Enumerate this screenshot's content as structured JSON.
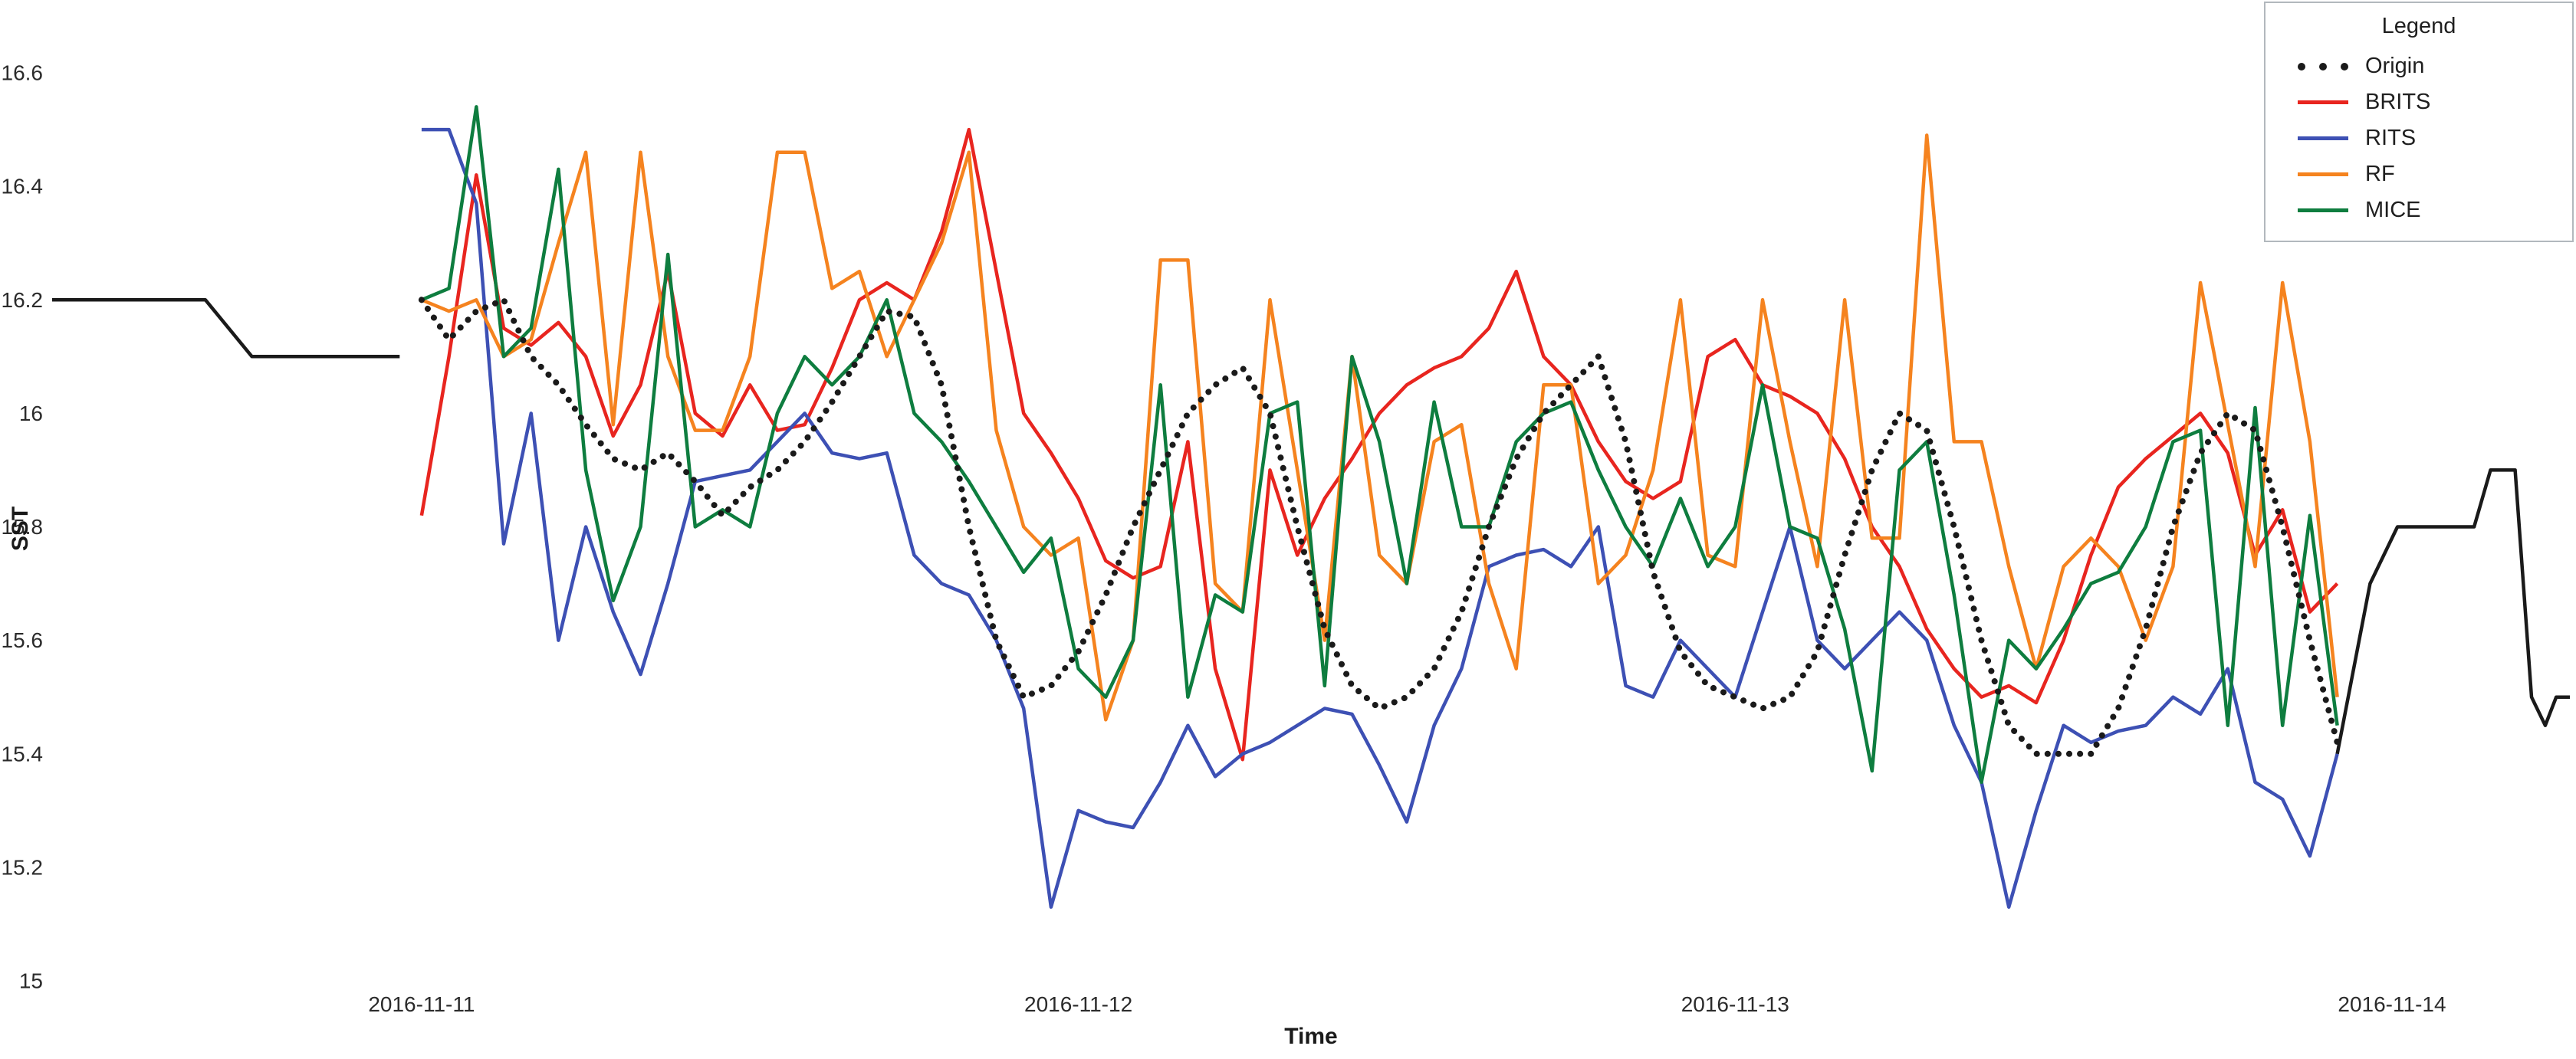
{
  "chart_data": {
    "type": "line",
    "title": "",
    "xlabel": "Time",
    "ylabel": "SST",
    "ylim": [
      15,
      16.6
    ],
    "yticks": [
      16.6,
      16.4,
      16.2,
      16,
      15.8,
      15.6,
      15.4,
      15.2,
      15
    ],
    "ytick_labels": [
      "16.6",
      "16.4",
      "16.2",
      "16",
      "15.8",
      "15.6",
      "15.4",
      "15.2",
      "15"
    ],
    "xlim": [
      -13.5,
      78.5
    ],
    "x_unit": "hours relative to 2016-11-11 00:00",
    "xticks": [
      {
        "x": 0,
        "label": "2016-11-11"
      },
      {
        "x": 24,
        "label": "2016-11-12"
      },
      {
        "x": 48,
        "label": "2016-11-13"
      },
      {
        "x": 72,
        "label": "2016-11-14"
      }
    ],
    "grid": false,
    "legend": {
      "title": "Legend",
      "position": "top-right"
    },
    "series": [
      {
        "name": "Origin",
        "color": "#1a1a1a",
        "style": "dotted",
        "segments": [
          {
            "style": "solid",
            "x": [
              -13.5,
              -7.9,
              -6.2,
              -0.8
            ],
            "y": [
              16.2,
              16.2,
              16.1,
              16.1
            ]
          },
          {
            "style": "dotted",
            "x_start": 0,
            "x_step": 1,
            "values": [
              16.2,
              16.13,
              16.18,
              16.2,
              16.1,
              16.05,
              15.98,
              15.92,
              15.9,
              15.93,
              15.88,
              15.82,
              15.87,
              15.9,
              15.95,
              16.02,
              16.1,
              16.18,
              16.17,
              16.05,
              15.8,
              15.6,
              15.5,
              15.52,
              15.58,
              15.68,
              15.8,
              15.9,
              16.0,
              16.05,
              16.08,
              16.0,
              15.8,
              15.62,
              15.52,
              15.48,
              15.5,
              15.55,
              15.65,
              15.8,
              15.92,
              16.0,
              16.05,
              16.1,
              15.95,
              15.72,
              15.58,
              15.52,
              15.5,
              15.48,
              15.5,
              15.58,
              15.75,
              15.9,
              16.0,
              15.97,
              15.8,
              15.6,
              15.45,
              15.4,
              15.4,
              15.4,
              15.48,
              15.62,
              15.8,
              15.93,
              16.0,
              15.97,
              15.8,
              15.6,
              15.42
            ]
          },
          {
            "style": "solid",
            "x": [
              70,
              71.2,
              72.2,
              75.0,
              75.6,
              76.5,
              77.1,
              77.6,
              78.0,
              78.5
            ],
            "y": [
              15.4,
              15.7,
              15.8,
              15.8,
              15.9,
              15.9,
              15.5,
              15.45,
              15.5,
              15.5
            ]
          }
        ]
      },
      {
        "name": "BRITS",
        "color": "#e8251f",
        "style": "solid",
        "x_start": 0,
        "x_step": 1,
        "values": [
          15.82,
          16.1,
          16.42,
          16.15,
          16.12,
          16.16,
          16.1,
          15.96,
          16.05,
          16.25,
          16.0,
          15.96,
          16.05,
          15.97,
          15.98,
          16.08,
          16.2,
          16.23,
          16.2,
          16.32,
          16.5,
          16.25,
          16.0,
          15.93,
          15.85,
          15.74,
          15.71,
          15.73,
          15.95,
          15.55,
          15.39,
          15.9,
          15.75,
          15.85,
          15.92,
          16.0,
          16.05,
          16.08,
          16.1,
          16.15,
          16.25,
          16.1,
          16.05,
          15.95,
          15.88,
          15.85,
          15.88,
          16.1,
          16.13,
          16.05,
          16.03,
          16.0,
          15.92,
          15.8,
          15.73,
          15.62,
          15.55,
          15.5,
          15.52,
          15.49,
          15.6,
          15.75,
          15.87,
          15.92,
          15.96,
          16.0,
          15.93,
          15.75,
          15.83,
          15.65,
          15.7
        ]
      },
      {
        "name": "RITS",
        "color": "#3d50b4",
        "style": "solid",
        "x_start": 0,
        "x_step": 1,
        "values": [
          16.5,
          16.5,
          16.37,
          15.77,
          16.0,
          15.6,
          15.8,
          15.65,
          15.54,
          15.7,
          15.88,
          15.89,
          15.9,
          15.95,
          16.0,
          15.93,
          15.92,
          15.93,
          15.75,
          15.7,
          15.68,
          15.6,
          15.48,
          15.13,
          15.3,
          15.28,
          15.27,
          15.35,
          15.45,
          15.36,
          15.4,
          15.42,
          15.45,
          15.48,
          15.47,
          15.38,
          15.28,
          15.45,
          15.55,
          15.73,
          15.75,
          15.76,
          15.73,
          15.8,
          15.52,
          15.5,
          15.6,
          15.55,
          15.5,
          15.65,
          15.8,
          15.6,
          15.55,
          15.6,
          15.65,
          15.6,
          15.45,
          15.35,
          15.13,
          15.3,
          15.45,
          15.42,
          15.44,
          15.45,
          15.5,
          15.47,
          15.55,
          15.35,
          15.32,
          15.22,
          15.4
        ]
      },
      {
        "name": "RF",
        "color": "#f5831f",
        "style": "solid",
        "x_start": 0,
        "x_step": 1,
        "values": [
          16.2,
          16.18,
          16.2,
          16.1,
          16.13,
          16.3,
          16.46,
          15.98,
          16.46,
          16.1,
          15.97,
          15.97,
          16.1,
          16.46,
          16.46,
          16.22,
          16.25,
          16.1,
          16.2,
          16.3,
          16.46,
          15.97,
          15.8,
          15.75,
          15.78,
          15.46,
          15.6,
          16.27,
          16.27,
          15.7,
          15.65,
          16.2,
          15.9,
          15.6,
          16.1,
          15.75,
          15.7,
          15.95,
          15.98,
          15.7,
          15.55,
          16.05,
          16.05,
          15.7,
          15.75,
          15.9,
          16.2,
          15.75,
          15.73,
          16.2,
          15.95,
          15.73,
          16.2,
          15.78,
          15.78,
          16.49,
          15.95,
          15.95,
          15.73,
          15.55,
          15.73,
          15.78,
          15.73,
          15.6,
          15.73,
          16.23,
          15.98,
          15.73,
          16.23,
          15.95,
          15.5
        ]
      },
      {
        "name": "MICE",
        "color": "#0e7d3f",
        "style": "solid",
        "x_start": 0,
        "x_step": 1,
        "values": [
          16.2,
          16.22,
          16.54,
          16.1,
          16.15,
          16.43,
          15.9,
          15.67,
          15.8,
          16.28,
          15.8,
          15.83,
          15.8,
          16.0,
          16.1,
          16.05,
          16.1,
          16.2,
          16.0,
          15.95,
          15.88,
          15.8,
          15.72,
          15.78,
          15.55,
          15.5,
          15.6,
          16.05,
          15.5,
          15.68,
          15.65,
          16.0,
          16.02,
          15.52,
          16.1,
          15.95,
          15.7,
          16.02,
          15.8,
          15.8,
          15.95,
          16.0,
          16.02,
          15.9,
          15.8,
          15.73,
          15.85,
          15.73,
          15.8,
          16.05,
          15.8,
          15.78,
          15.62,
          15.37,
          15.9,
          15.95,
          15.68,
          15.35,
          15.6,
          15.55,
          15.62,
          15.7,
          15.72,
          15.8,
          15.95,
          15.97,
          15.45,
          16.01,
          15.45,
          15.82,
          15.45
        ]
      }
    ]
  }
}
